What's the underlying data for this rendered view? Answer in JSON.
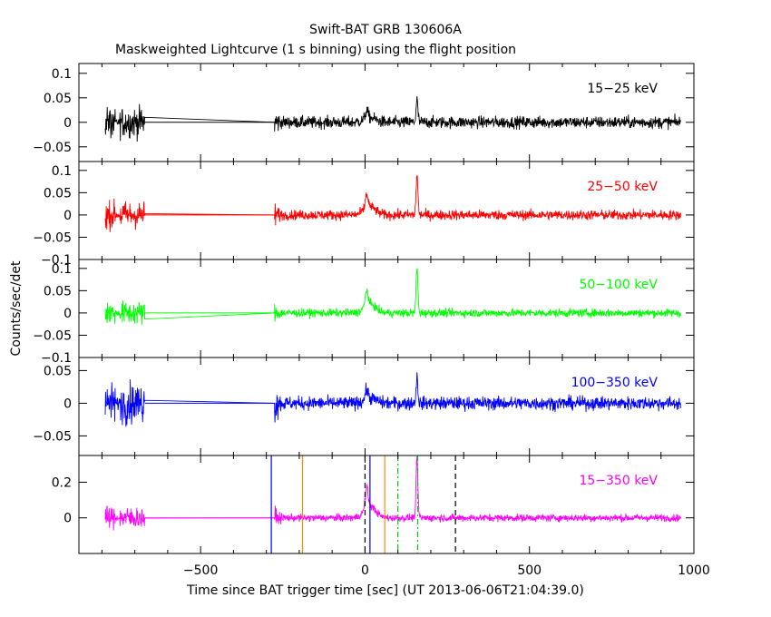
{
  "chart_data": {
    "type": "line",
    "title": "Swift-BAT GRB 130606A",
    "subtitle": "Maskweighted Lightcurve (1 s binning) using the flight position",
    "xlabel": "Time since BAT trigger time [sec] (UT 2013-06-06T21:04:39.0)",
    "ylabel": "Counts/sec/det",
    "xlim": [
      -870,
      1000
    ],
    "xticks": [
      -500,
      0,
      500,
      1000
    ],
    "xtick_labels": [
      "−500",
      "0",
      "500",
      "1000"
    ],
    "grid": false,
    "panels": [
      {
        "label": "15−25 keV",
        "color": "#000000",
        "ylim": [
          -0.08,
          0.12
        ],
        "yticks": [
          -0.05,
          0,
          0.05,
          0.1
        ],
        "ytick_labels": [
          "−0.05",
          "0",
          "0.05",
          "0.1"
        ],
        "noise": 0.012,
        "burst_noise": 0.03,
        "peak": 0.045
      },
      {
        "label": "25−50 keV",
        "color": "#ff0000",
        "ylim": [
          -0.1,
          0.12
        ],
        "yticks": [
          -0.1,
          -0.05,
          0,
          0.05,
          0.1
        ],
        "ytick_labels": [
          "−0.1",
          "−0.05",
          "0",
          "0.05",
          "0.1"
        ],
        "noise": 0.011,
        "burst_noise": 0.03,
        "peak": 0.09
      },
      {
        "label": "50−100 keV",
        "color": "#00ff00",
        "ylim": [
          -0.1,
          0.12
        ],
        "yticks": [
          -0.1,
          -0.05,
          0,
          0.05,
          0.1
        ],
        "ytick_labels": [
          "−0.1",
          "−0.05",
          "0",
          "0.05",
          "0.1"
        ],
        "noise": 0.009,
        "burst_noise": 0.025,
        "peak": 0.1
      },
      {
        "label": "100−350 keV",
        "color": "#0000ff",
        "ylim": [
          -0.08,
          0.07
        ],
        "yticks": [
          -0.05,
          0,
          0.05
        ],
        "ytick_labels": [
          "−0.05",
          "0",
          "0.05"
        ],
        "noise": 0.01,
        "burst_noise": 0.03,
        "peak": 0.04
      },
      {
        "label": "15−350 keV",
        "color": "#ff00ff",
        "ylim": [
          -0.2,
          0.35
        ],
        "yticks": [
          0,
          0.2
        ],
        "ytick_labels": [
          "0",
          "0.2"
        ],
        "noise": 0.02,
        "burst_noise": 0.06,
        "peak": 0.33
      }
    ],
    "series_segments": {
      "early_burst": [
        -790,
        -670
      ],
      "gap": [
        -670,
        -275
      ],
      "main": [
        -275,
        960
      ]
    },
    "vertical_markers": [
      {
        "x": -285,
        "color": "#0000ff",
        "style": "solid"
      },
      {
        "x": -190,
        "color": "#ff8c00",
        "style": "solid"
      },
      {
        "x": 0,
        "color": "#000000",
        "style": "dashed"
      },
      {
        "x": 15,
        "color": "#0000ff",
        "style": "solid"
      },
      {
        "x": 60,
        "color": "#ff8c00",
        "style": "solid"
      },
      {
        "x": 100,
        "color": "#00cc00",
        "style": "dashdot"
      },
      {
        "x": 160,
        "color": "#00cc00",
        "style": "dashdot"
      },
      {
        "x": 275,
        "color": "#000000",
        "style": "dashed"
      }
    ]
  }
}
